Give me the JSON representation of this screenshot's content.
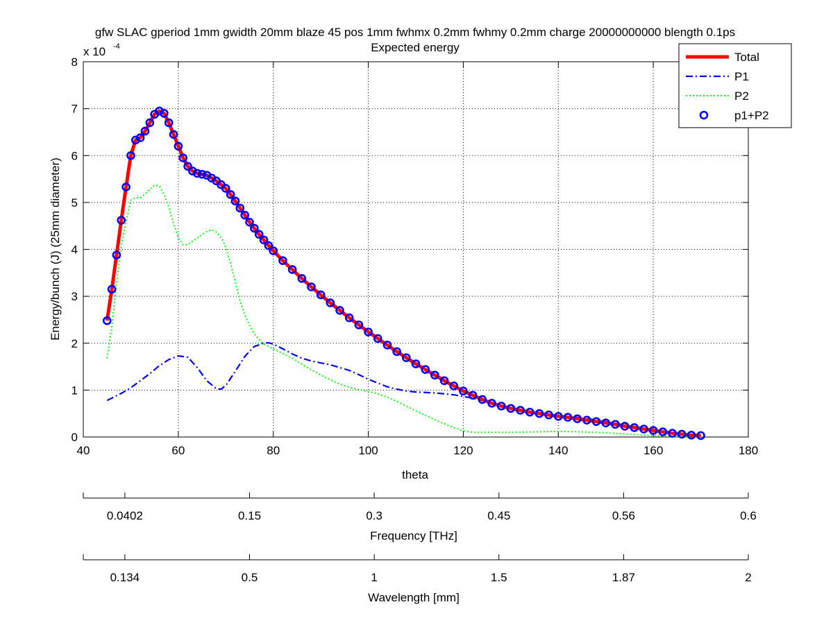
{
  "colors": {
    "total": "#ff0000",
    "p1": "#0000ff",
    "p2": "#00ff00",
    "p1p2": "#0000ff",
    "axis": "#000000",
    "grid": "#000000",
    "background": "#ffffff"
  },
  "chart_data": {
    "type": "line",
    "title": "gfw SLAC gperiod 1mm gwidth 20mm blaze 45 pos 1mm fwhmx 0.2mm fwhmy 0.2mm charge 20000000000 blength 0.1ps",
    "subtitle": "Expected energy",
    "xlabel": "theta",
    "ylabel": "Energy/bunch (J) (25mm diameter)",
    "y_scale_label": "x 10",
    "y_scale_exponent": "-4",
    "xlim": [
      40,
      180
    ],
    "ylim": [
      0,
      8
    ],
    "xticks": [
      40,
      60,
      80,
      100,
      120,
      140,
      160,
      180
    ],
    "yticks": [
      0,
      1,
      2,
      3,
      4,
      5,
      6,
      7,
      8
    ],
    "grid": true,
    "legend_position": "top-right",
    "series": [
      {
        "name": "Total",
        "style": "solid-thick",
        "x": [
          45,
          46,
          47,
          48,
          49,
          50,
          51,
          52,
          53,
          54,
          55,
          56,
          57,
          58,
          59,
          60,
          61,
          62,
          63,
          64,
          65,
          66,
          67,
          68,
          69,
          70,
          71,
          72,
          73,
          74,
          75,
          76,
          77,
          78,
          79,
          80,
          82,
          84,
          86,
          88,
          90,
          92,
          94,
          96,
          98,
          100,
          102,
          104,
          106,
          108,
          110,
          112,
          114,
          116,
          118,
          120,
          122,
          124,
          126,
          128,
          130,
          132,
          134,
          136,
          138,
          140,
          142,
          144,
          146,
          148,
          150,
          152,
          154,
          156,
          158,
          160,
          162,
          164,
          166,
          168,
          170
        ],
        "values": [
          2.48,
          3.15,
          3.88,
          4.62,
          5.33,
          6.0,
          6.33,
          6.38,
          6.52,
          6.7,
          6.88,
          6.95,
          6.9,
          6.7,
          6.45,
          6.2,
          5.95,
          5.77,
          5.67,
          5.62,
          5.6,
          5.58,
          5.52,
          5.46,
          5.38,
          5.3,
          5.17,
          5.03,
          4.88,
          4.73,
          4.58,
          4.45,
          4.32,
          4.2,
          4.08,
          3.97,
          3.76,
          3.57,
          3.38,
          3.2,
          3.03,
          2.86,
          2.7,
          2.54,
          2.39,
          2.24,
          2.1,
          1.96,
          1.82,
          1.69,
          1.56,
          1.44,
          1.32,
          1.2,
          1.09,
          0.98,
          0.89,
          0.8,
          0.72,
          0.66,
          0.61,
          0.57,
          0.53,
          0.5,
          0.47,
          0.44,
          0.42,
          0.39,
          0.36,
          0.33,
          0.3,
          0.27,
          0.23,
          0.2,
          0.17,
          0.14,
          0.11,
          0.08,
          0.06,
          0.04,
          0.03
        ]
      },
      {
        "name": "P1",
        "style": "dashdot",
        "x": [
          45,
          48,
          50,
          52,
          54,
          56,
          58,
          60,
          62,
          64,
          66,
          68,
          69,
          70,
          72,
          74,
          76,
          78,
          79,
          80,
          82,
          84,
          86,
          88,
          90,
          92,
          94,
          96,
          98,
          100,
          102,
          104,
          106,
          108,
          110,
          114,
          118,
          122,
          126,
          130,
          135,
          140,
          145,
          150,
          155,
          160,
          165,
          170
        ],
        "values": [
          0.78,
          0.93,
          1.05,
          1.2,
          1.35,
          1.52,
          1.65,
          1.73,
          1.7,
          1.48,
          1.2,
          1.03,
          1.02,
          1.1,
          1.4,
          1.72,
          1.93,
          2.0,
          2.01,
          1.98,
          1.88,
          1.77,
          1.68,
          1.62,
          1.58,
          1.54,
          1.48,
          1.42,
          1.33,
          1.23,
          1.15,
          1.07,
          1.02,
          0.98,
          0.96,
          0.94,
          0.9,
          0.83,
          0.72,
          0.6,
          0.52,
          0.46,
          0.41,
          0.33,
          0.24,
          0.16,
          0.08,
          0.03
        ]
      },
      {
        "name": "P2",
        "style": "dotted",
        "x": [
          45,
          46,
          47,
          48,
          49,
          50,
          51,
          52,
          53,
          54,
          55,
          56,
          57,
          58,
          59,
          60,
          61,
          62,
          64,
          66,
          67,
          68,
          69,
          70,
          71,
          72,
          73,
          74,
          75,
          76,
          77,
          78,
          80,
          82,
          84,
          86,
          88,
          90,
          92,
          94,
          96,
          98,
          100,
          102,
          104,
          106,
          108,
          110,
          112,
          114,
          116,
          118,
          120,
          122,
          124,
          126,
          128,
          130,
          135,
          140,
          145,
          150,
          155,
          160,
          162,
          165,
          170
        ],
        "values": [
          1.68,
          2.35,
          3.3,
          4.08,
          4.6,
          5.05,
          5.1,
          5.1,
          5.18,
          5.28,
          5.37,
          5.35,
          5.18,
          4.9,
          4.55,
          4.25,
          4.1,
          4.1,
          4.25,
          4.38,
          4.42,
          4.37,
          4.25,
          4.05,
          3.7,
          3.3,
          2.9,
          2.6,
          2.38,
          2.2,
          2.08,
          1.98,
          1.88,
          1.78,
          1.68,
          1.55,
          1.43,
          1.32,
          1.22,
          1.13,
          1.06,
          1.01,
          0.97,
          0.92,
          0.85,
          0.76,
          0.66,
          0.56,
          0.46,
          0.37,
          0.28,
          0.2,
          0.13,
          0.1,
          0.1,
          0.1,
          0.1,
          0.1,
          0.11,
          0.12,
          0.11,
          0.09,
          0.06,
          0.03,
          0.02,
          0.01,
          0.0
        ]
      },
      {
        "name": "p1+P2",
        "style": "circles"
      }
    ],
    "secondary_axes": [
      {
        "label": "Frequency [THz]",
        "ticks": [
          {
            "at": 0,
            "label": ""
          },
          {
            "at": 0.0625,
            "label": "0.0402"
          },
          {
            "at": 0.25,
            "label": "0.15"
          },
          {
            "at": 0.4375,
            "label": "0.3"
          },
          {
            "at": 0.625,
            "label": "0.45"
          },
          {
            "at": 0.8125,
            "label": "0.56"
          },
          {
            "at": 1.0,
            "label": "0.6"
          }
        ]
      },
      {
        "label": "Wavelength [mm]",
        "ticks": [
          {
            "at": 0,
            "label": ""
          },
          {
            "at": 0.0625,
            "label": "0.134"
          },
          {
            "at": 0.25,
            "label": "0.5"
          },
          {
            "at": 0.4375,
            "label": "1"
          },
          {
            "at": 0.625,
            "label": "1.5"
          },
          {
            "at": 0.8125,
            "label": "1.87"
          },
          {
            "at": 1.0,
            "label": "2"
          }
        ]
      }
    ]
  }
}
